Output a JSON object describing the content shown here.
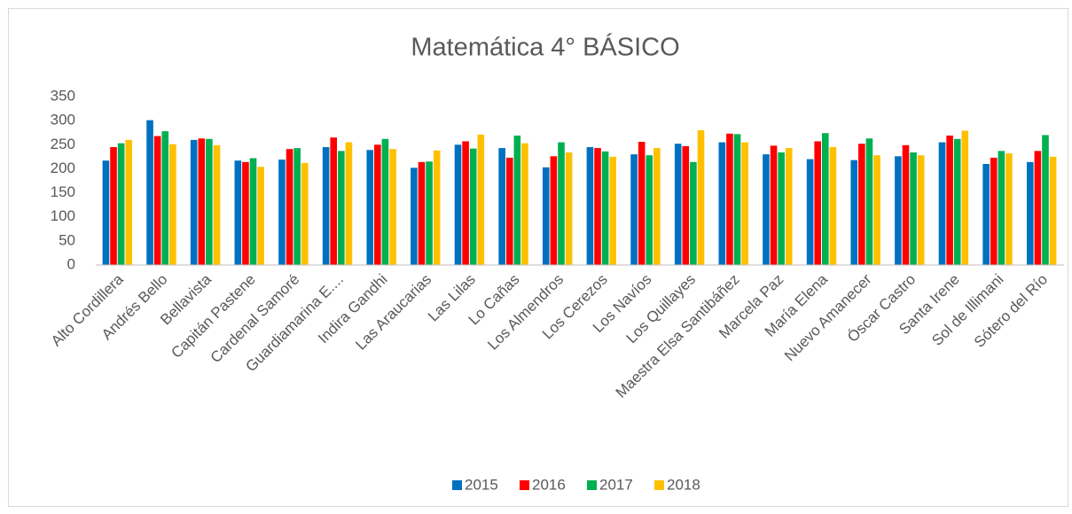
{
  "chart_data": {
    "type": "bar",
    "title": "Matemática 4° BÁSICO",
    "categories": [
      "Alto Cordillera",
      "Andrés Bello",
      "Bellavista",
      "Capitán Pastene",
      "Cardenal Samoré",
      "Guardiamarina E....",
      "Indira Gandhi",
      "Las Araucarias",
      "Las Lilas",
      "Lo Cañas",
      "Los Almendros",
      "Los Cerezos",
      "Los Navíos",
      "Los Quillayes",
      "Maestra Elsa Santibáñez",
      "Marcela Paz",
      "María Elena",
      "Nuevo Amanecer",
      "Óscar Castro",
      "Santa Irene",
      "Sol de Illimani",
      "Sótero del Río"
    ],
    "series": [
      {
        "name": "2015",
        "color": "#0070c0",
        "values": [
          217,
          301,
          260,
          217,
          219,
          245,
          239,
          202,
          250,
          243,
          203,
          245,
          230,
          252,
          255,
          230,
          220,
          218,
          226,
          255,
          210,
          214
        ]
      },
      {
        "name": "2016",
        "color": "#ff0000",
        "values": [
          245,
          268,
          263,
          214,
          241,
          265,
          250,
          214,
          257,
          223,
          226,
          243,
          256,
          247,
          273,
          248,
          257,
          252,
          249,
          269,
          223,
          237
        ]
      },
      {
        "name": "2017",
        "color": "#00b050",
        "values": [
          253,
          278,
          262,
          222,
          243,
          237,
          262,
          215,
          242,
          269,
          255,
          236,
          228,
          214,
          272,
          234,
          274,
          263,
          234,
          262,
          237,
          270
        ]
      },
      {
        "name": "2018",
        "color": "#ffc000",
        "values": [
          260,
          251,
          249,
          204,
          212,
          255,
          241,
          238,
          271,
          253,
          234,
          225,
          243,
          280,
          255,
          243,
          245,
          228,
          228,
          279,
          232,
          225
        ]
      }
    ],
    "ylim": [
      0,
      350
    ],
    "yticks": [
      0,
      50,
      100,
      150,
      200,
      250,
      300,
      350
    ],
    "grid": false,
    "legend": "bottom"
  }
}
